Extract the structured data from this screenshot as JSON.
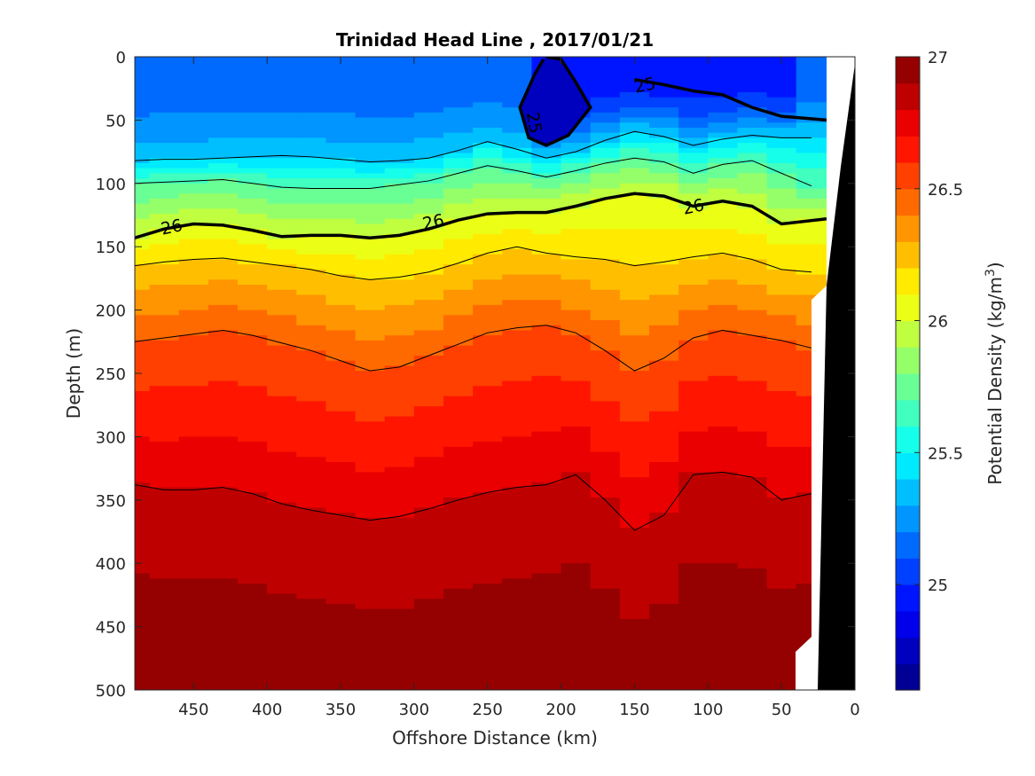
{
  "chart_data": {
    "type": "heatmap",
    "title": "Trinidad Head Line , 2017/01/21",
    "xlabel": "Offshore Distance (km)",
    "ylabel": "Depth (m)",
    "colorbar_label_text": "Potential Density (kg/m",
    "colorbar_label_sup": "3",
    "colorbar_label_close": ")",
    "x_direction": "reversed",
    "y_direction": "reversed",
    "xlim": [
      490,
      0
    ],
    "ylim": [
      0,
      500
    ],
    "x_ticks": [
      "450",
      "400",
      "350",
      "300",
      "250",
      "200",
      "150",
      "100",
      "50",
      "0"
    ],
    "y_ticks": [
      "0",
      "50",
      "100",
      "150",
      "200",
      "250",
      "300",
      "350",
      "400",
      "450",
      "500"
    ],
    "colorbar": {
      "range": [
        24.6,
        27.0
      ],
      "ticks": [
        "25",
        "25.5",
        "26",
        "26.5",
        "27"
      ],
      "levels": 24,
      "colormap": "jet"
    },
    "x": [
      490,
      470,
      450,
      430,
      410,
      390,
      370,
      350,
      330,
      310,
      290,
      270,
      250,
      230,
      210,
      190,
      170,
      150,
      130,
      110,
      90,
      70,
      50,
      30
    ],
    "isopycnals": [
      {
        "sigma": 25.0,
        "bold": true,
        "depths": [
          null,
          null,
          null,
          null,
          null,
          null,
          null,
          null,
          null,
          null,
          null,
          null,
          null,
          null,
          null,
          null,
          null,
          18,
          22,
          27,
          30,
          40,
          47,
          50
        ]
      },
      {
        "sigma": 25.4,
        "bold": false,
        "depths": [
          82,
          81,
          81,
          80,
          79,
          78,
          79,
          81,
          83,
          82,
          80,
          74,
          67,
          73,
          80,
          75,
          66,
          59,
          63,
          70,
          65,
          62,
          64,
          64
        ]
      },
      {
        "sigma": 25.7,
        "bold": false,
        "depths": [
          100,
          99,
          98,
          97,
          100,
          103,
          104,
          104,
          104,
          101,
          98,
          92,
          86,
          90,
          95,
          90,
          84,
          80,
          83,
          92,
          85,
          82,
          92,
          102
        ]
      },
      {
        "sigma": 26.0,
        "bold": true,
        "depths": [
          143,
          136,
          132,
          133,
          137,
          142,
          141,
          141,
          143,
          141,
          136,
          129,
          124,
          123,
          123,
          118,
          112,
          108,
          110,
          118,
          114,
          118,
          132,
          128
        ]
      },
      {
        "sigma": 26.2,
        "bold": false,
        "depths": [
          165,
          162,
          160,
          159,
          162,
          165,
          168,
          173,
          176,
          174,
          170,
          163,
          155,
          150,
          155,
          158,
          160,
          165,
          162,
          158,
          155,
          160,
          168,
          170
        ]
      },
      {
        "sigma": 26.5,
        "bold": false,
        "depths": [
          225,
          222,
          219,
          216,
          220,
          226,
          232,
          240,
          248,
          245,
          236,
          227,
          218,
          214,
          212,
          218,
          232,
          248,
          238,
          222,
          216,
          220,
          224,
          230
        ]
      },
      {
        "sigma": 26.8,
        "bold": false,
        "depths": [
          338,
          342,
          342,
          340,
          345,
          353,
          358,
          362,
          366,
          363,
          357,
          350,
          344,
          340,
          338,
          330,
          350,
          374,
          362,
          330,
          328,
          332,
          350,
          345
        ]
      }
    ],
    "contour_labels": [
      {
        "text": "25",
        "x": 143,
        "depth": 22
      },
      {
        "text": "25",
        "x": 218,
        "depth": 52
      },
      {
        "text": "26",
        "x": 465,
        "depth": 134
      },
      {
        "text": "26",
        "x": 287,
        "depth": 130
      },
      {
        "text": "26",
        "x": 110,
        "depth": 118
      }
    ]
  }
}
